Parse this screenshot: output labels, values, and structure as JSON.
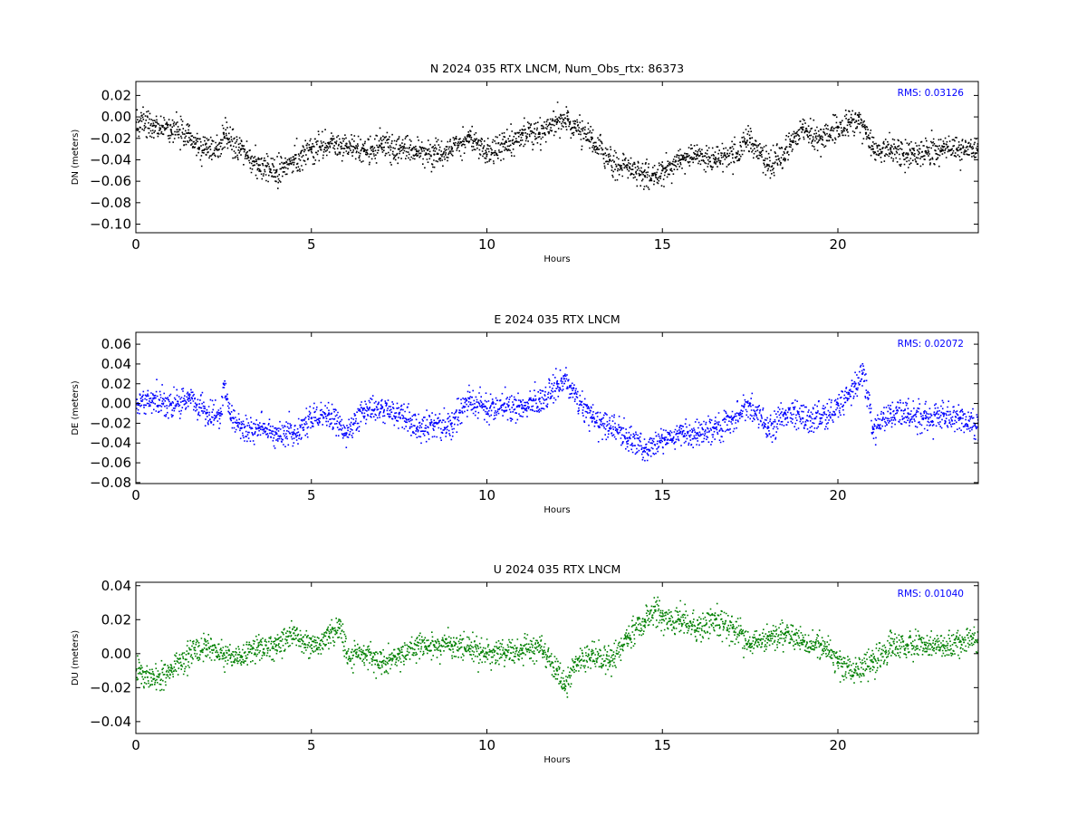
{
  "chart_data": [
    {
      "type": "scatter",
      "title": "N 2024 035 RTX  LNCM, Num_Obs_rtx: 86373",
      "xlabel": "Hours",
      "ylabel": "DN (meters)",
      "xlim": [
        0,
        24
      ],
      "ylim": [
        -0.108,
        0.033
      ],
      "xticks": [
        "0",
        "5",
        "10",
        "15",
        "20"
      ],
      "yticks": [
        "0.02",
        "0.00",
        "−0.02",
        "−0.04",
        "−0.06",
        "−0.08",
        "−0.10"
      ],
      "ytick_values": [
        0.02,
        0.0,
        -0.02,
        -0.04,
        -0.06,
        -0.08,
        -0.1
      ],
      "rms_label": "RMS:  0.03126",
      "color": "#000000",
      "grid": false,
      "series": [
        {
          "x": [
            0,
            0.5,
            1,
            1.5,
            1.8,
            2,
            2.3,
            2.5,
            2.6,
            3,
            3.5,
            4,
            4.5,
            5,
            5.5,
            6,
            6.5,
            7,
            7.5,
            8,
            8.5,
            9,
            9.5,
            10,
            10.5,
            11,
            11.5,
            12,
            12.3,
            12.5,
            13,
            13.5,
            14,
            14.5,
            15,
            15.5,
            16,
            16.5,
            17,
            17.5,
            18,
            18.5,
            19,
            19.5,
            20,
            20.3,
            20.6,
            20.8,
            21,
            21.5,
            22,
            22.5,
            23,
            23.5,
            24
          ],
          "y": [
            -0.005,
            -0.008,
            -0.012,
            -0.015,
            -0.03,
            -0.025,
            -0.03,
            -0.015,
            -0.02,
            -0.03,
            -0.045,
            -0.05,
            -0.04,
            -0.03,
            -0.025,
            -0.025,
            -0.032,
            -0.025,
            -0.03,
            -0.032,
            -0.035,
            -0.03,
            -0.018,
            -0.035,
            -0.025,
            -0.015,
            -0.015,
            -0.005,
            -0.002,
            -0.01,
            -0.02,
            -0.04,
            -0.045,
            -0.055,
            -0.05,
            -0.04,
            -0.035,
            -0.04,
            -0.035,
            -0.02,
            -0.045,
            -0.03,
            -0.012,
            -0.02,
            -0.01,
            -0.005,
            0.0,
            -0.015,
            -0.03,
            -0.03,
            -0.035,
            -0.032,
            -0.028,
            -0.03,
            -0.03
          ]
        }
      ]
    },
    {
      "type": "scatter",
      "title": "E 2024 035 RTX  LNCM",
      "xlabel": "Hours",
      "ylabel": "DE (meters)",
      "xlim": [
        0,
        24
      ],
      "ylim": [
        -0.081,
        0.072
      ],
      "xticks": [
        "0",
        "5",
        "10",
        "15",
        "20"
      ],
      "yticks": [
        "0.06",
        "0.04",
        "0.02",
        "0.00",
        "−0.02",
        "−0.04",
        "−0.06",
        "−0.08"
      ],
      "ytick_values": [
        0.06,
        0.04,
        0.02,
        0.0,
        -0.02,
        -0.04,
        -0.06,
        -0.08
      ],
      "rms_label": "RMS:  0.02072",
      "color": "#0000ff",
      "grid": false,
      "series": [
        {
          "x": [
            0,
            0.5,
            1,
            1.5,
            2,
            2.4,
            2.5,
            2.7,
            3,
            3.5,
            4,
            4.5,
            5,
            5.5,
            6,
            6.5,
            7,
            7.5,
            8,
            8.5,
            9,
            9.5,
            10,
            10.5,
            11,
            11.5,
            12,
            12.2,
            12.5,
            13,
            13.5,
            14,
            14.5,
            15,
            15.5,
            16,
            16.5,
            17,
            17.5,
            18,
            18.5,
            19,
            19.5,
            20,
            20.5,
            20.7,
            21,
            21.5,
            22,
            22.5,
            23,
            23.5,
            24
          ],
          "y": [
            0.0,
            0.005,
            0.0,
            0.005,
            -0.01,
            -0.01,
            0.02,
            -0.015,
            -0.025,
            -0.025,
            -0.03,
            -0.03,
            -0.015,
            -0.01,
            -0.03,
            -0.005,
            -0.005,
            -0.01,
            -0.025,
            -0.02,
            -0.02,
            0.005,
            -0.005,
            0.0,
            -0.005,
            0.005,
            0.02,
            0.025,
            0.01,
            -0.015,
            -0.025,
            -0.035,
            -0.045,
            -0.035,
            -0.03,
            -0.03,
            -0.025,
            -0.015,
            0.0,
            -0.025,
            -0.01,
            -0.015,
            -0.015,
            0.0,
            0.02,
            0.03,
            -0.025,
            -0.01,
            -0.01,
            -0.015,
            -0.01,
            -0.015,
            -0.02
          ]
        }
      ]
    },
    {
      "type": "scatter",
      "title": "U 2024 035 RTX  LNCM",
      "xlabel": "Hours",
      "ylabel": "DU (meters)",
      "xlim": [
        0,
        24
      ],
      "ylim": [
        -0.047,
        0.042
      ],
      "xticks": [
        "0",
        "5",
        "10",
        "15",
        "20"
      ],
      "yticks": [
        "0.04",
        "0.02",
        "0.00",
        "−0.02",
        "−0.04"
      ],
      "ytick_values": [
        0.04,
        0.02,
        0.0,
        -0.02,
        -0.04
      ],
      "rms_label": "RMS:  0.01040",
      "color": "#008000",
      "grid": false,
      "series": [
        {
          "x": [
            0,
            0.5,
            1,
            1.5,
            2,
            2.5,
            3,
            3.5,
            4,
            4.5,
            5,
            5.5,
            5.8,
            6,
            6.5,
            7,
            7.5,
            8,
            8.5,
            9,
            9.5,
            10,
            10.5,
            11,
            11.5,
            12,
            12.2,
            12.5,
            13,
            13.5,
            14,
            14.5,
            14.8,
            15,
            15.5,
            16,
            16.5,
            17,
            17.5,
            18,
            18.5,
            19,
            19.5,
            20,
            20.5,
            21,
            21.5,
            22,
            22.5,
            23,
            23.5,
            24
          ],
          "y": [
            -0.01,
            -0.015,
            -0.01,
            0.0,
            0.005,
            0.0,
            -0.002,
            0.005,
            0.005,
            0.012,
            0.005,
            0.01,
            0.015,
            0.0,
            0.0,
            -0.005,
            0.0,
            0.005,
            0.005,
            0.005,
            0.003,
            0.0,
            0.0,
            0.002,
            0.005,
            -0.01,
            -0.02,
            -0.005,
            0.0,
            -0.005,
            0.01,
            0.02,
            0.025,
            0.022,
            0.02,
            0.015,
            0.02,
            0.015,
            0.005,
            0.01,
            0.012,
            0.008,
            0.005,
            -0.005,
            -0.01,
            -0.005,
            0.005,
            0.005,
            0.005,
            0.005,
            0.007,
            0.008
          ]
        }
      ]
    }
  ]
}
